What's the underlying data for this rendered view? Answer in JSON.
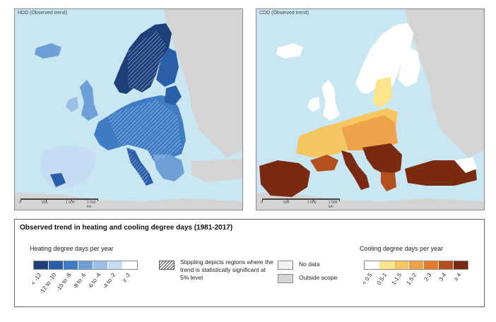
{
  "maps": {
    "hdd_title": "HDD (Observed trend)",
    "cdd_title": "CDD (Observed trend)",
    "scale_labels": [
      "0",
      "500",
      "1 000",
      "1 500 km"
    ]
  },
  "legend": {
    "title": "Observed trend in heating and cooling degree days (1981-2017)",
    "hdd": {
      "label": "Heating degree days per year",
      "classes": [
        "< -12",
        "-12 to -10",
        "-10 to -8",
        "-8 to -6",
        "-6 to -4",
        "-4 to -2",
        "≥ -2"
      ],
      "colors": [
        "#1d3f7a",
        "#2b5ea8",
        "#3f7cc4",
        "#6e9fd6",
        "#9cc0e6",
        "#c5dcf2",
        "#ffffff"
      ]
    },
    "stippling": "Stippling depicts regions where the trend is statistically significant at 5% level",
    "no_data": "No data",
    "outside_scope": "Outside scope",
    "cdd": {
      "label": "Cooling degree days per year",
      "classes": [
        "< 0.5",
        "0.5-1",
        "1-1.5",
        "1.5-2",
        "2-3",
        "3-4",
        "≥ 4"
      ],
      "colors": [
        "#ffffff",
        "#fbe48a",
        "#f6c660",
        "#eea34a",
        "#e07c2c",
        "#b4501d",
        "#7a2a10"
      ]
    },
    "colors": {
      "no_data": "#f2f2f2",
      "outside_scope": "#d4d4d4"
    }
  }
}
